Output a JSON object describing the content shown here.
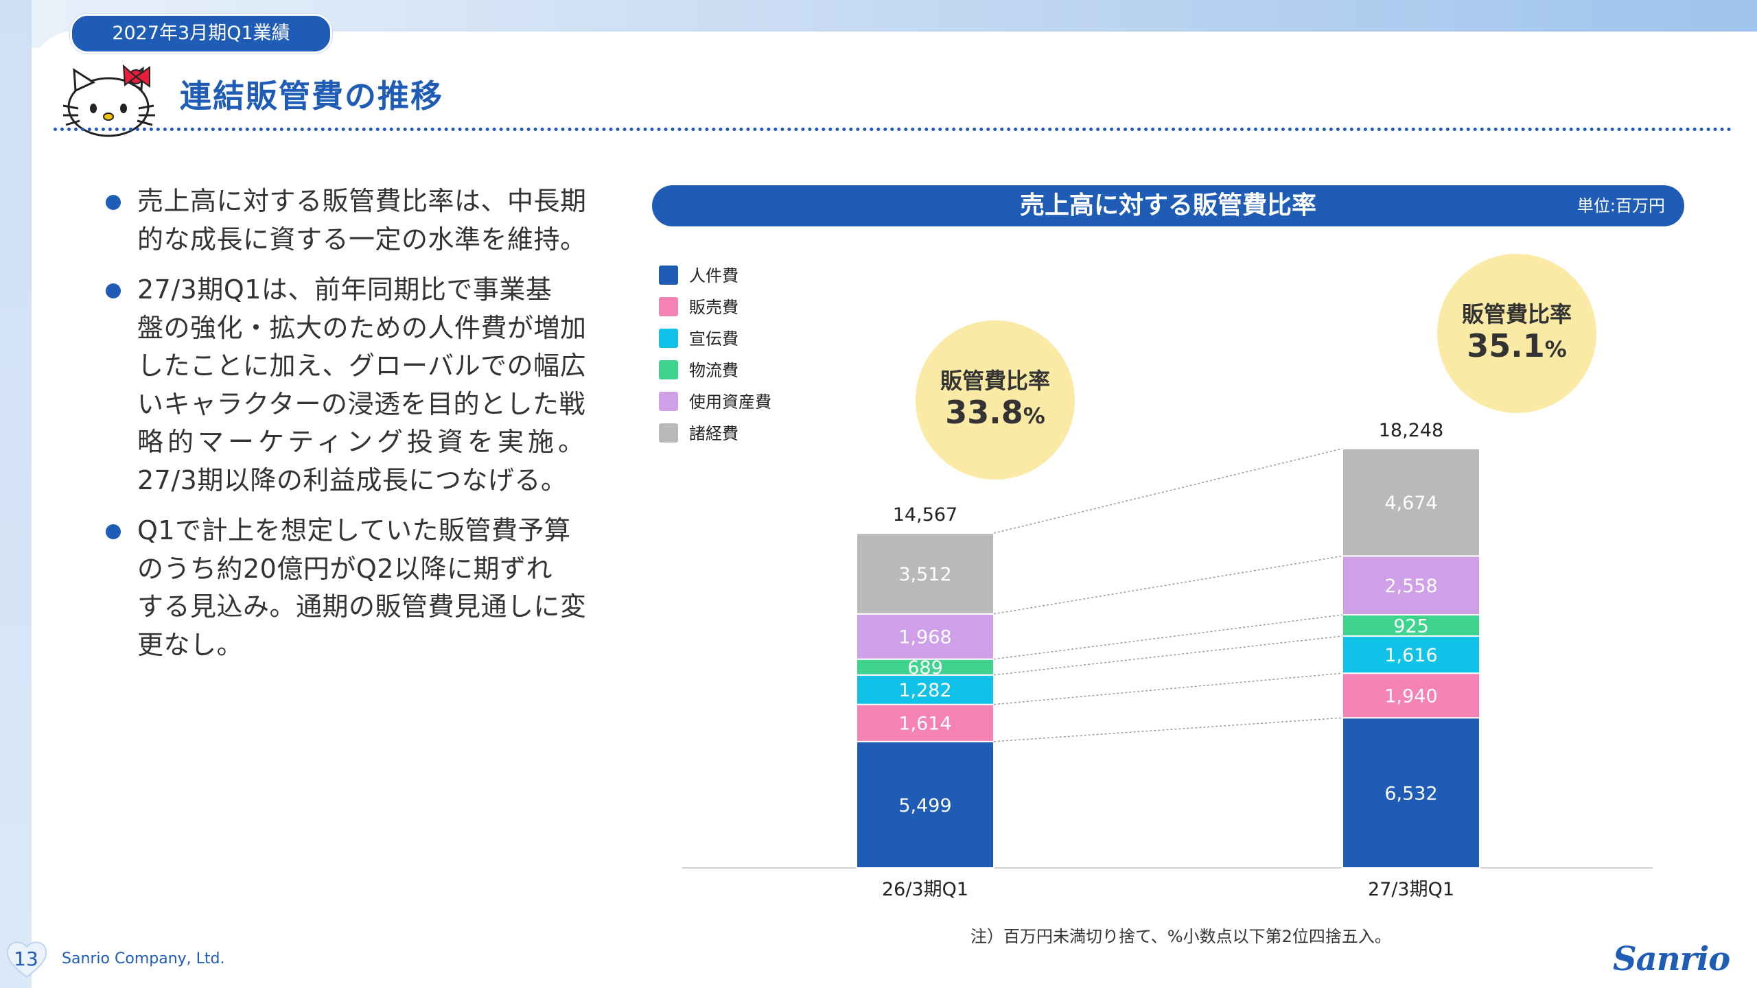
{
  "header": {
    "period_tag": "2027年3月期Q1業績",
    "title": "連結販管費の推移"
  },
  "bullets": [
    "売上高に対する販管費比率は、中長期的な成長に資する一定の水準を維持。",
    "27/3期Q1は、前年同期比で事業基盤の強化・拡大のための人件費が増加したことに加え、グローバルでの幅広いキャラクターの浸透を目的とした戦略的マーケティング投資を実施。27/3期以降の利益成長につなげる。",
    "Q1で計上を想定していた販管費予算のうち約20億円がQ2以降に期ずれする見込み。通期の販管費見通しに変更なし。"
  ],
  "bullet_lines": [
    [
      "売上高に対する販管費比率は、中長期",
      "的な成長に資する一定の水準を維持。"
    ],
    [
      "27/3期Q1は、前年同期比で事業基",
      "盤の強化・拡大のための人件費が増加",
      "したことに加え、グローバルでの幅広",
      "いキャラクターの浸透を目的とした戦",
      "略的マーケティング投資を実施。",
      "27/3期以降の利益成長につなげる。"
    ],
    [
      "Q1で計上を想定していた販管費予算",
      "のうち約20億円がQ2以降に期ずれ",
      "する見込み。通期の販管費見通しに変",
      "更なし。"
    ]
  ],
  "chart_header": {
    "title": "売上高に対する販管費比率",
    "unit": "単位:百万円"
  },
  "ratios": [
    {
      "label": "販管費比率",
      "value": "33.8",
      "unit": "%"
    },
    {
      "label": "販管費比率",
      "value": "35.1",
      "unit": "%"
    }
  ],
  "note": "注）百万円未満切り捨て、%小数点以下第2位四捨五入。",
  "footer": {
    "page_number": "13",
    "company": "Sanrio Company, Ltd.",
    "logo_text": "Sanrio"
  },
  "chart_data": {
    "type": "bar",
    "stacked": true,
    "categories": [
      "26/3期Q1",
      "27/3期Q1"
    ],
    "series": [
      {
        "name": "人件費",
        "color": "#1f5cb5",
        "values": [
          5499,
          6532
        ]
      },
      {
        "name": "販売費",
        "color": "#f582b4",
        "values": [
          1614,
          1940
        ]
      },
      {
        "name": "宣伝費",
        "color": "#10c1e8",
        "values": [
          1282,
          1616
        ]
      },
      {
        "name": "物流費",
        "color": "#3fd48e",
        "values": [
          689,
          925
        ]
      },
      {
        "name": "使用資産費",
        "color": "#cf9fe8",
        "values": [
          1968,
          2558
        ]
      },
      {
        "name": "諸経費",
        "color": "#b9b9b9",
        "values": [
          3512,
          4674
        ]
      }
    ],
    "totals": [
      "14,567",
      "18,248"
    ],
    "value_labels": [
      [
        "5,499",
        "6,532"
      ],
      [
        "1,614",
        "1,940"
      ],
      [
        "1,282",
        "1,616"
      ],
      [
        "689",
        "925"
      ],
      [
        "1,968",
        "2,558"
      ],
      [
        "3,512",
        "4,674"
      ]
    ],
    "legend": "top-left",
    "grid": false
  }
}
